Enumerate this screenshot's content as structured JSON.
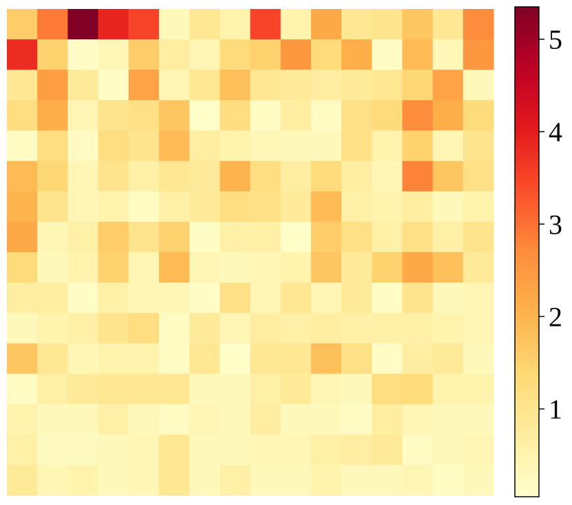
{
  "chart_data": {
    "type": "heatmap",
    "title": "",
    "xlabel": "",
    "ylabel": "",
    "rows": 16,
    "cols": 16,
    "colormap": "YlOrRd",
    "colorbar": {
      "min": 0.05,
      "max": 5.35,
      "ticks": [
        1,
        2,
        3,
        4,
        5
      ],
      "tick_labels": [
        "1",
        "2",
        "3",
        "4",
        "5"
      ]
    },
    "values": [
      [
        1.6,
        2.9,
        5.35,
        3.9,
        3.5,
        0.3,
        0.9,
        0.5,
        3.5,
        0.5,
        2.2,
        0.9,
        1.0,
        1.7,
        0.9,
        2.7
      ],
      [
        3.8,
        1.5,
        0.15,
        0.35,
        1.6,
        0.7,
        0.4,
        1.3,
        1.5,
        2.5,
        1.3,
        2.1,
        0.15,
        1.9,
        0.35,
        2.5
      ],
      [
        0.9,
        2.4,
        0.8,
        0.15,
        2.3,
        0.4,
        0.9,
        1.8,
        0.9,
        0.8,
        0.7,
        0.8,
        0.9,
        1.4,
        2.3,
        0.3
      ],
      [
        1.2,
        2.1,
        0.4,
        1.0,
        1.1,
        1.7,
        0.1,
        1.2,
        0.2,
        0.7,
        0.2,
        1.1,
        1.3,
        2.7,
        2.1,
        1.3
      ],
      [
        0.2,
        1.2,
        0.2,
        1.2,
        1.0,
        1.9,
        0.7,
        0.5,
        0.35,
        0.3,
        0.3,
        1.1,
        0.5,
        1.5,
        0.4,
        1.0
      ],
      [
        1.9,
        1.4,
        0.4,
        1.0,
        0.6,
        0.9,
        0.8,
        2.0,
        1.2,
        0.7,
        1.3,
        0.7,
        0.4,
        2.8,
        1.7,
        1.1
      ],
      [
        2.0,
        1.0,
        0.4,
        0.5,
        0.2,
        0.6,
        0.8,
        1.2,
        1.1,
        0.8,
        1.9,
        0.6,
        0.5,
        0.7,
        0.3,
        0.5
      ],
      [
        2.2,
        0.4,
        0.6,
        1.6,
        1.0,
        1.5,
        0.15,
        0.6,
        0.6,
        0.1,
        1.6,
        1.1,
        0.6,
        1.1,
        0.6,
        1.0
      ],
      [
        1.3,
        0.3,
        0.5,
        1.5,
        0.4,
        1.9,
        0.4,
        0.3,
        0.4,
        0.5,
        1.7,
        0.8,
        1.5,
        2.2,
        1.8,
        0.8
      ],
      [
        0.7,
        0.7,
        0.15,
        0.6,
        0.4,
        0.4,
        0.15,
        1.1,
        0.4,
        0.9,
        0.4,
        0.8,
        0.15,
        1.0,
        0.3,
        0.4
      ],
      [
        0.3,
        0.5,
        0.6,
        1.0,
        1.2,
        0.2,
        0.8,
        0.4,
        0.7,
        0.6,
        0.7,
        0.6,
        0.6,
        0.6,
        0.5,
        0.4
      ],
      [
        1.7,
        0.9,
        0.4,
        0.5,
        0.5,
        0.2,
        0.9,
        0.1,
        0.9,
        0.9,
        1.8,
        1.1,
        0.15,
        0.7,
        0.8,
        0.3
      ],
      [
        0.2,
        0.6,
        0.8,
        0.9,
        0.9,
        0.9,
        0.3,
        0.3,
        0.6,
        0.8,
        0.4,
        0.3,
        1.2,
        1.3,
        0.5,
        0.5
      ],
      [
        0.5,
        0.3,
        0.3,
        0.6,
        0.3,
        0.2,
        0.4,
        0.3,
        0.7,
        0.3,
        0.3,
        0.2,
        0.7,
        0.4,
        0.3,
        0.3
      ],
      [
        0.6,
        0.25,
        0.25,
        0.3,
        0.4,
        0.9,
        0.3,
        0.3,
        0.4,
        0.4,
        0.6,
        0.7,
        0.8,
        0.2,
        0.3,
        0.4
      ],
      [
        0.8,
        0.4,
        0.5,
        0.3,
        0.4,
        0.9,
        0.3,
        0.6,
        0.3,
        0.3,
        0.5,
        0.3,
        0.3,
        0.4,
        0.2,
        0.3
      ]
    ]
  }
}
